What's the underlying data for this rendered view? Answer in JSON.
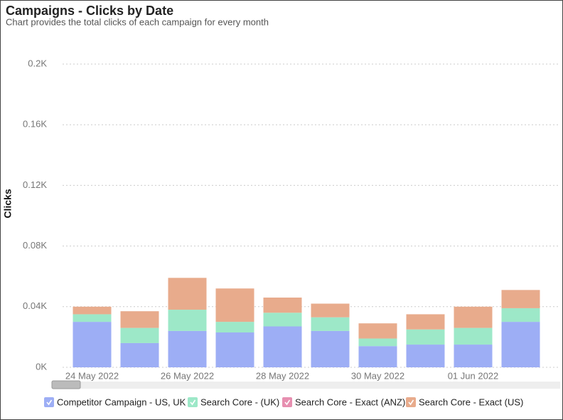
{
  "chart_data": {
    "type": "stacked-bar",
    "title": "Campaigns - Clicks by Date",
    "subtitle": "Chart provides the total clicks of each campaign for every month",
    "y_label": "Clicks",
    "categories": [
      "24 May 2022",
      null,
      "26 May 2022",
      null,
      "28 May 2022",
      null,
      "30 May 2022",
      null,
      "01 Jun 2022",
      null
    ],
    "series": [
      {
        "name": "Competitor Campaign - US, UK",
        "color": "#9daef5",
        "values": [
          30,
          16,
          24,
          23,
          27,
          24,
          14,
          15,
          15,
          30
        ]
      },
      {
        "name": "Search Core - (UK)",
        "color": "#9de8c8",
        "values": [
          5,
          10,
          14,
          7,
          9,
          9,
          5,
          10,
          11,
          9
        ]
      },
      {
        "name": "Search Core - Exact (ANZ)",
        "color": "#e78fb0",
        "values": [
          0,
          0,
          0,
          0,
          0,
          0,
          0,
          0,
          0,
          0
        ]
      },
      {
        "name": "Search Core - Exact (US)",
        "color": "#e8ab8c",
        "values": [
          5,
          11,
          21,
          22,
          10,
          9,
          10,
          10,
          14,
          12
        ]
      }
    ],
    "ylim": [
      0,
      200
    ],
    "yticks": [
      {
        "value": 0,
        "label": "0K"
      },
      {
        "value": 40,
        "label": "0.04K"
      },
      {
        "value": 80,
        "label": "0.08K"
      },
      {
        "value": 120,
        "label": "0.12K"
      },
      {
        "value": 160,
        "label": "0.16K"
      },
      {
        "value": 200,
        "label": "0.2K"
      }
    ],
    "grid": true
  }
}
